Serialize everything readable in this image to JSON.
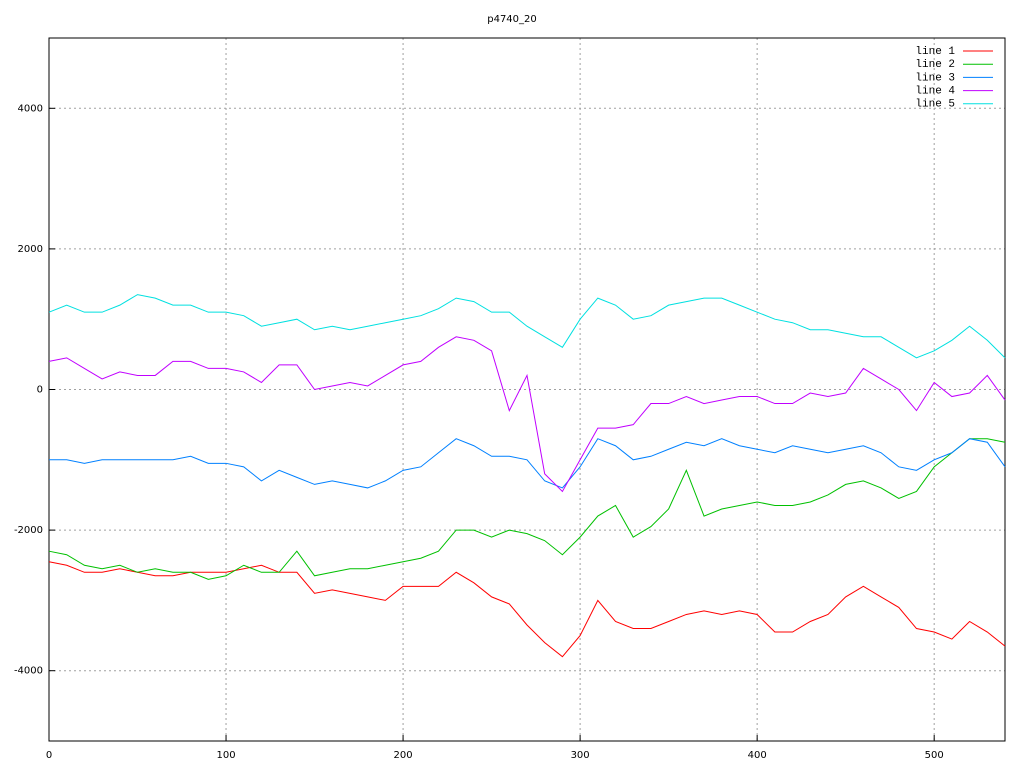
{
  "chart_data": {
    "type": "line",
    "title": "p4740_20",
    "x": [
      0,
      10,
      20,
      30,
      40,
      50,
      60,
      70,
      80,
      90,
      100,
      110,
      120,
      130,
      140,
      150,
      160,
      170,
      180,
      190,
      200,
      210,
      220,
      230,
      240,
      250,
      260,
      270,
      280,
      290,
      300,
      310,
      320,
      330,
      340,
      350,
      360,
      370,
      380,
      390,
      400,
      410,
      420,
      430,
      440,
      450,
      460,
      470,
      480,
      490,
      500,
      510,
      520,
      530,
      540
    ],
    "series": [
      {
        "name": "line 1",
        "color": "#ff0000",
        "values": [
          -2450,
          -2500,
          -2600,
          -2600,
          -2550,
          -2600,
          -2650,
          -2650,
          -2600,
          -2600,
          -2600,
          -2550,
          -2500,
          -2600,
          -2600,
          -2900,
          -2850,
          -2900,
          -2950,
          -3000,
          -2800,
          -2800,
          -2800,
          -2600,
          -2750,
          -2950,
          -3050,
          -3350,
          -3600,
          -3800,
          -3500,
          -3000,
          -3300,
          -3400,
          -3400,
          -3300,
          -3200,
          -3150,
          -3200,
          -3150,
          -3200,
          -3450,
          -3450,
          -3300,
          -3200,
          -2950,
          -2800,
          -2950,
          -3100,
          -3400,
          -3450,
          -3550,
          -3300,
          -3450,
          -3650
        ]
      },
      {
        "name": "line 2",
        "color": "#00c000",
        "values": [
          -2300,
          -2350,
          -2500,
          -2550,
          -2500,
          -2600,
          -2550,
          -2600,
          -2600,
          -2700,
          -2650,
          -2500,
          -2600,
          -2600,
          -2300,
          -2650,
          -2600,
          -2550,
          -2550,
          -2500,
          -2450,
          -2400,
          -2300,
          -2000,
          -2000,
          -2100,
          -2000,
          -2050,
          -2150,
          -2350,
          -2100,
          -1800,
          -1650,
          -2100,
          -1950,
          -1700,
          -1150,
          -1800,
          -1700,
          -1650,
          -1600,
          -1650,
          -1650,
          -1600,
          -1500,
          -1350,
          -1300,
          -1400,
          -1550,
          -1450,
          -1100,
          -900,
          -700,
          -700,
          -750
        ]
      },
      {
        "name": "line 3",
        "color": "#0080ff",
        "values": [
          -1000,
          -1000,
          -1050,
          -1000,
          -1000,
          -1000,
          -1000,
          -1000,
          -950,
          -1050,
          -1050,
          -1100,
          -1300,
          -1150,
          -1250,
          -1350,
          -1300,
          -1350,
          -1400,
          -1300,
          -1150,
          -1100,
          -900,
          -700,
          -800,
          -950,
          -950,
          -1000,
          -1300,
          -1400,
          -1100,
          -700,
          -800,
          -1000,
          -950,
          -850,
          -750,
          -800,
          -700,
          -800,
          -850,
          -900,
          -800,
          -850,
          -900,
          -850,
          -800,
          -900,
          -1100,
          -1150,
          -1000,
          -900,
          -700,
          -750,
          -1100
        ]
      },
      {
        "name": "line 4",
        "color": "#c000ff",
        "values": [
          400,
          450,
          300,
          150,
          250,
          200,
          200,
          400,
          400,
          300,
          300,
          250,
          100,
          350,
          350,
          0,
          50,
          100,
          50,
          200,
          350,
          400,
          600,
          750,
          700,
          550,
          -300,
          200,
          -1200,
          -1450,
          -1000,
          -550,
          -550,
          -500,
          -200,
          -200,
          -100,
          -200,
          -150,
          -100,
          -100,
          -200,
          -200,
          -50,
          -100,
          -50,
          300,
          150,
          0,
          -300,
          100,
          -100,
          -50,
          200,
          -150
        ]
      },
      {
        "name": "line 5",
        "color": "#00e0e0",
        "values": [
          1100,
          1200,
          1100,
          1100,
          1200,
          1350,
          1300,
          1200,
          1200,
          1100,
          1100,
          1050,
          900,
          950,
          1000,
          850,
          900,
          850,
          900,
          950,
          1000,
          1050,
          1150,
          1300,
          1250,
          1100,
          1100,
          900,
          750,
          600,
          1000,
          1300,
          1200,
          1000,
          1050,
          1200,
          1250,
          1300,
          1300,
          1200,
          1100,
          1000,
          950,
          850,
          850,
          800,
          750,
          750,
          600,
          450,
          550,
          700,
          900,
          700,
          450
        ]
      }
    ],
    "xlim": [
      0,
      540
    ],
    "ylim": [
      -5000,
      5000
    ],
    "xticks": [
      0,
      100,
      200,
      300,
      400,
      500
    ],
    "yticks": [
      -4000,
      -2000,
      0,
      2000,
      4000
    ],
    "grid": true,
    "legend": "upper right"
  }
}
